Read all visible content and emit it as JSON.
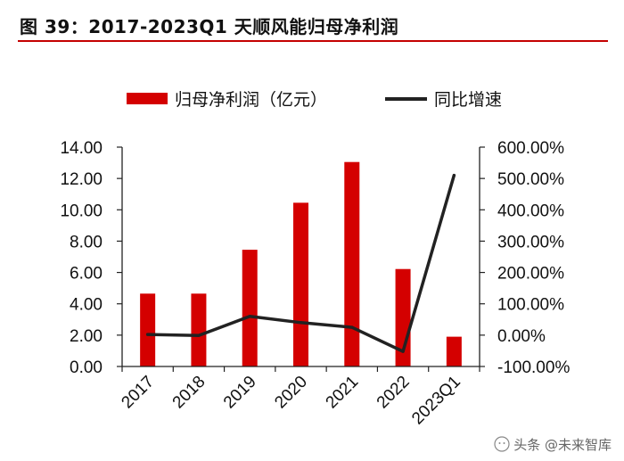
{
  "figure": {
    "title": "图 39：2017-2023Q1 天顺风能归母净利润"
  },
  "chart_data": {
    "type": "bar",
    "categories": [
      "2017",
      "2018",
      "2019",
      "2020",
      "2021",
      "2022",
      "2023Q1"
    ],
    "series": [
      {
        "name": "归母净利润（亿元）",
        "type": "bar",
        "axis": "left",
        "color": "#d40000",
        "values": [
          4.65,
          4.65,
          7.45,
          10.45,
          13.05,
          6.22,
          1.9
        ]
      },
      {
        "name": "同比增速",
        "type": "line",
        "axis": "right",
        "color": "#222222",
        "values": [
          0.02,
          -0.01,
          0.6,
          0.4,
          0.25,
          -0.52,
          5.1
        ]
      }
    ],
    "left_axis": {
      "min": 0,
      "max": 14,
      "step": 2,
      "ticks": [
        "0.00",
        "2.00",
        "4.00",
        "6.00",
        "8.00",
        "10.00",
        "12.00",
        "14.00"
      ]
    },
    "right_axis": {
      "min": -1,
      "max": 6,
      "step": 1,
      "ticks": [
        "-100.00%",
        "0.00%",
        "100.00%",
        "200.00%",
        "300.00%",
        "400.00%",
        "500.00%",
        "600.00%"
      ]
    },
    "legend_position": "top",
    "grid": false,
    "xlabel": "",
    "ylabel": ""
  },
  "watermark": {
    "text": "头条 @未来智库"
  }
}
